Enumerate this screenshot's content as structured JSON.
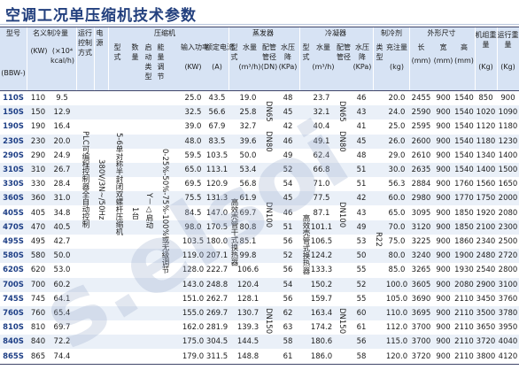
{
  "title": "空调工况单压缩机技术参数",
  "header": {
    "model": "型号",
    "model_sub": "(BBW-)",
    "nominal_cooling": "名义制冷量",
    "kw": "(KW)",
    "kcal": "(×10⁴",
    "kcal2": "kcal/h)",
    "control": "运行控制方式",
    "power": "电源",
    "compressor": "压缩机",
    "comp_type": "型式",
    "comp_count": "数量",
    "start_type": "启动类型",
    "capacity_reg": "能量调节",
    "input_power": "输入功率",
    "input_power_unit": "(KW)",
    "rated_current": "额定电流",
    "rated_current_unit": "(A)",
    "evaporator": "蒸发器",
    "evap_type": "型式",
    "evap_flow": "水量",
    "evap_flow_unit": "(m³/h)",
    "evap_pipe": "配管管径",
    "evap_pipe_unit": "(DN)",
    "evap_drop": "水压降",
    "evap_drop_unit": "(KPa)",
    "condenser": "冷凝器",
    "cond_type": "型式",
    "cond_flow": "水量",
    "cond_flow_unit": "(m³/h)",
    "cond_pipe": "配管管径",
    "cond_drop": "水压降",
    "cond_drop_unit": "(KPa)",
    "refrigerant": "制冷剂",
    "ref_type": "类型",
    "charge": "充注量",
    "charge_unit": "(kg)",
    "dimensions": "外形尺寸",
    "length": "长",
    "width": "宽",
    "height": "高",
    "mm": "(mm)",
    "unit_weight": "机组重量",
    "running_weight": "运行重量",
    "kg": "(Kg)"
  },
  "spans": {
    "control": "PLC可编程控制器全自动控制",
    "power": "380V/3N~/50Hz",
    "comp_type": "5-6单对称半封闭双螺杆压缩机",
    "comp_count": "1台",
    "start_type": "Y－△启动",
    "capacity_reg": "0-25%-50%-75%-100%或无级调节",
    "evap_type": "高效壳管干式换热器",
    "cond_type": "高效壳管式换热器",
    "refrigerant": "R22",
    "evap_pipe_1": "DN65",
    "evap_pipe_2": "DN80",
    "evap_pipe_3": "DN100",
    "evap_pipe_4": "DN150",
    "cond_pipe_1": "DN65",
    "cond_pipe_2": "DN80",
    "cond_pipe_3": "DN100",
    "cond_pipe_4": "DN150"
  },
  "rows": [
    {
      "model": "110S",
      "kw": "110",
      "kcal": "9.5",
      "power": "25.0",
      "current": "43.5",
      "evap_flow": "19.0",
      "evap_drop": "48",
      "cond_flow": "23.7",
      "cond_drop": "46",
      "charge": "20.0",
      "l": "2455",
      "w": "900",
      "h": "1540",
      "wt": "850",
      "rw": "900"
    },
    {
      "model": "150S",
      "kw": "150",
      "kcal": "12.9",
      "power": "32.5",
      "current": "56.6",
      "evap_flow": "25.8",
      "evap_drop": "45",
      "cond_flow": "32.1",
      "cond_drop": "43",
      "charge": "24.0",
      "l": "2590",
      "w": "900",
      "h": "1540",
      "wt": "1020",
      "rw": "1090"
    },
    {
      "model": "190S",
      "kw": "190",
      "kcal": "16.4",
      "power": "39.0",
      "current": "67.9",
      "evap_flow": "32.7",
      "evap_drop": "42",
      "cond_flow": "40.4",
      "cond_drop": "41",
      "charge": "25.0",
      "l": "2595",
      "w": "900",
      "h": "1540",
      "wt": "1120",
      "rw": "1180"
    },
    {
      "model": "230S",
      "kw": "230",
      "kcal": "20.0",
      "power": "48.0",
      "current": "83.5",
      "evap_flow": "39.6",
      "evap_drop": "46",
      "cond_flow": "49.1",
      "cond_drop": "45",
      "charge": "26.0",
      "l": "2600",
      "w": "900",
      "h": "1540",
      "wt": "1180",
      "rw": "1230"
    },
    {
      "model": "290S",
      "kw": "290",
      "kcal": "24.9",
      "power": "59.5",
      "current": "103.5",
      "evap_flow": "50.0",
      "evap_drop": "49",
      "cond_flow": "62.4",
      "cond_drop": "48",
      "charge": "29.0",
      "l": "2610",
      "w": "900",
      "h": "1540",
      "wt": "1340",
      "rw": "1400"
    },
    {
      "model": "310S",
      "kw": "310",
      "kcal": "26.7",
      "power": "65.0",
      "current": "113.1",
      "evap_flow": "53.4",
      "evap_drop": "52",
      "cond_flow": "66.8",
      "cond_drop": "51",
      "charge": "30.0",
      "l": "2635",
      "w": "900",
      "h": "1540",
      "wt": "1400",
      "rw": "1500"
    },
    {
      "model": "330S",
      "kw": "330",
      "kcal": "28.4",
      "power": "69.5",
      "current": "120.9",
      "evap_flow": "56.8",
      "evap_drop": "54",
      "cond_flow": "71.0",
      "cond_drop": "51",
      "charge": "56.3",
      "l": "2884",
      "w": "900",
      "h": "1760",
      "wt": "1560",
      "rw": "1650"
    },
    {
      "model": "360S",
      "kw": "360",
      "kcal": "31.0",
      "power": "75.5",
      "current": "131.3",
      "evap_flow": "61.9",
      "evap_drop": "45",
      "cond_flow": "77.5",
      "cond_drop": "42",
      "charge": "60.0",
      "l": "2980",
      "w": "900",
      "h": "1770",
      "wt": "1750",
      "rw": "2000"
    },
    {
      "model": "405S",
      "kw": "405",
      "kcal": "34.8",
      "power": "84.5",
      "current": "147.0",
      "evap_flow": "69.7",
      "evap_drop": "46",
      "cond_flow": "87.1",
      "cond_drop": "43",
      "charge": "65.0",
      "l": "3095",
      "w": "900",
      "h": "1850",
      "wt": "1920",
      "rw": "2080"
    },
    {
      "model": "470S",
      "kw": "470",
      "kcal": "40.5",
      "power": "98.0",
      "current": "170.5",
      "evap_flow": "80.8",
      "evap_drop": "51",
      "cond_flow": "101.1",
      "cond_drop": "49",
      "charge": "70.0",
      "l": "3120",
      "w": "900",
      "h": "1850",
      "wt": "2100",
      "rw": "2300"
    },
    {
      "model": "495S",
      "kw": "495",
      "kcal": "42.7",
      "power": "103.5",
      "current": "180.0",
      "evap_flow": "85.1",
      "evap_drop": "56",
      "cond_flow": "106.5",
      "cond_drop": "53",
      "charge": "75.0",
      "l": "3225",
      "w": "900",
      "h": "1860",
      "wt": "2340",
      "rw": "2500"
    },
    {
      "model": "580S",
      "kw": "580",
      "kcal": "50.0",
      "power": "119.0",
      "current": "207.1",
      "evap_flow": "99.8",
      "evap_drop": "52",
      "cond_flow": "124.2",
      "cond_drop": "50",
      "charge": "80.0",
      "l": "3240",
      "w": "900",
      "h": "1900",
      "wt": "2480",
      "rw": "2720"
    },
    {
      "model": "620S",
      "kw": "620",
      "kcal": "53.0",
      "power": "128.0",
      "current": "222.7",
      "evap_flow": "106.6",
      "evap_drop": "56",
      "cond_flow": "133.3",
      "cond_drop": "55",
      "charge": "85.0",
      "l": "3265",
      "w": "900",
      "h": "1930",
      "wt": "2540",
      "rw": "2800"
    },
    {
      "model": "700S",
      "kw": "700",
      "kcal": "60.2",
      "power": "143.0",
      "current": "248.8",
      "evap_flow": "120.4",
      "evap_drop": "54",
      "cond_flow": "150.2",
      "cond_drop": "52",
      "charge": "100.0",
      "l": "3605",
      "w": "900",
      "h": "2080",
      "wt": "2900",
      "rw": "3100"
    },
    {
      "model": "745S",
      "kw": "745",
      "kcal": "64.1",
      "power": "151.0",
      "current": "262.7",
      "evap_flow": "128.1",
      "evap_drop": "56",
      "cond_flow": "159.7",
      "cond_drop": "55",
      "charge": "105.0",
      "l": "3690",
      "w": "900",
      "h": "2110",
      "wt": "3450",
      "rw": "3760"
    },
    {
      "model": "760S",
      "kw": "760",
      "kcal": "65.4",
      "power": "155.0",
      "current": "269.7",
      "evap_flow": "130.7",
      "evap_drop": "62",
      "cond_flow": "163.4",
      "cond_drop": "60",
      "charge": "110.0",
      "l": "3695",
      "w": "900",
      "h": "2110",
      "wt": "3500",
      "rw": "3780"
    },
    {
      "model": "810S",
      "kw": "810",
      "kcal": "69.7",
      "power": "162.0",
      "current": "281.9",
      "evap_flow": "139.3",
      "evap_drop": "63",
      "cond_flow": "174.2",
      "cond_drop": "61",
      "charge": "112.0",
      "l": "3700",
      "w": "900",
      "h": "2110",
      "wt": "3650",
      "rw": "3950"
    },
    {
      "model": "840S",
      "kw": "840",
      "kcal": "72.2",
      "power": "175.0",
      "current": "304.5",
      "evap_flow": "144.5",
      "evap_drop": "58",
      "cond_flow": "180.6",
      "cond_drop": "56",
      "charge": "115.0",
      "l": "3700",
      "w": "900",
      "h": "2110",
      "wt": "3720",
      "rw": "4040"
    },
    {
      "model": "865S",
      "kw": "865",
      "kcal": "74.4",
      "power": "179.0",
      "current": "311.5",
      "evap_flow": "148.8",
      "evap_drop": "61",
      "cond_flow": "186.0",
      "cond_drop": "58",
      "charge": "120.0",
      "l": "3720",
      "w": "900",
      "h": "2110",
      "wt": "3800",
      "rw": "4120"
    }
  ],
  "watermark": "s.elsoi"
}
